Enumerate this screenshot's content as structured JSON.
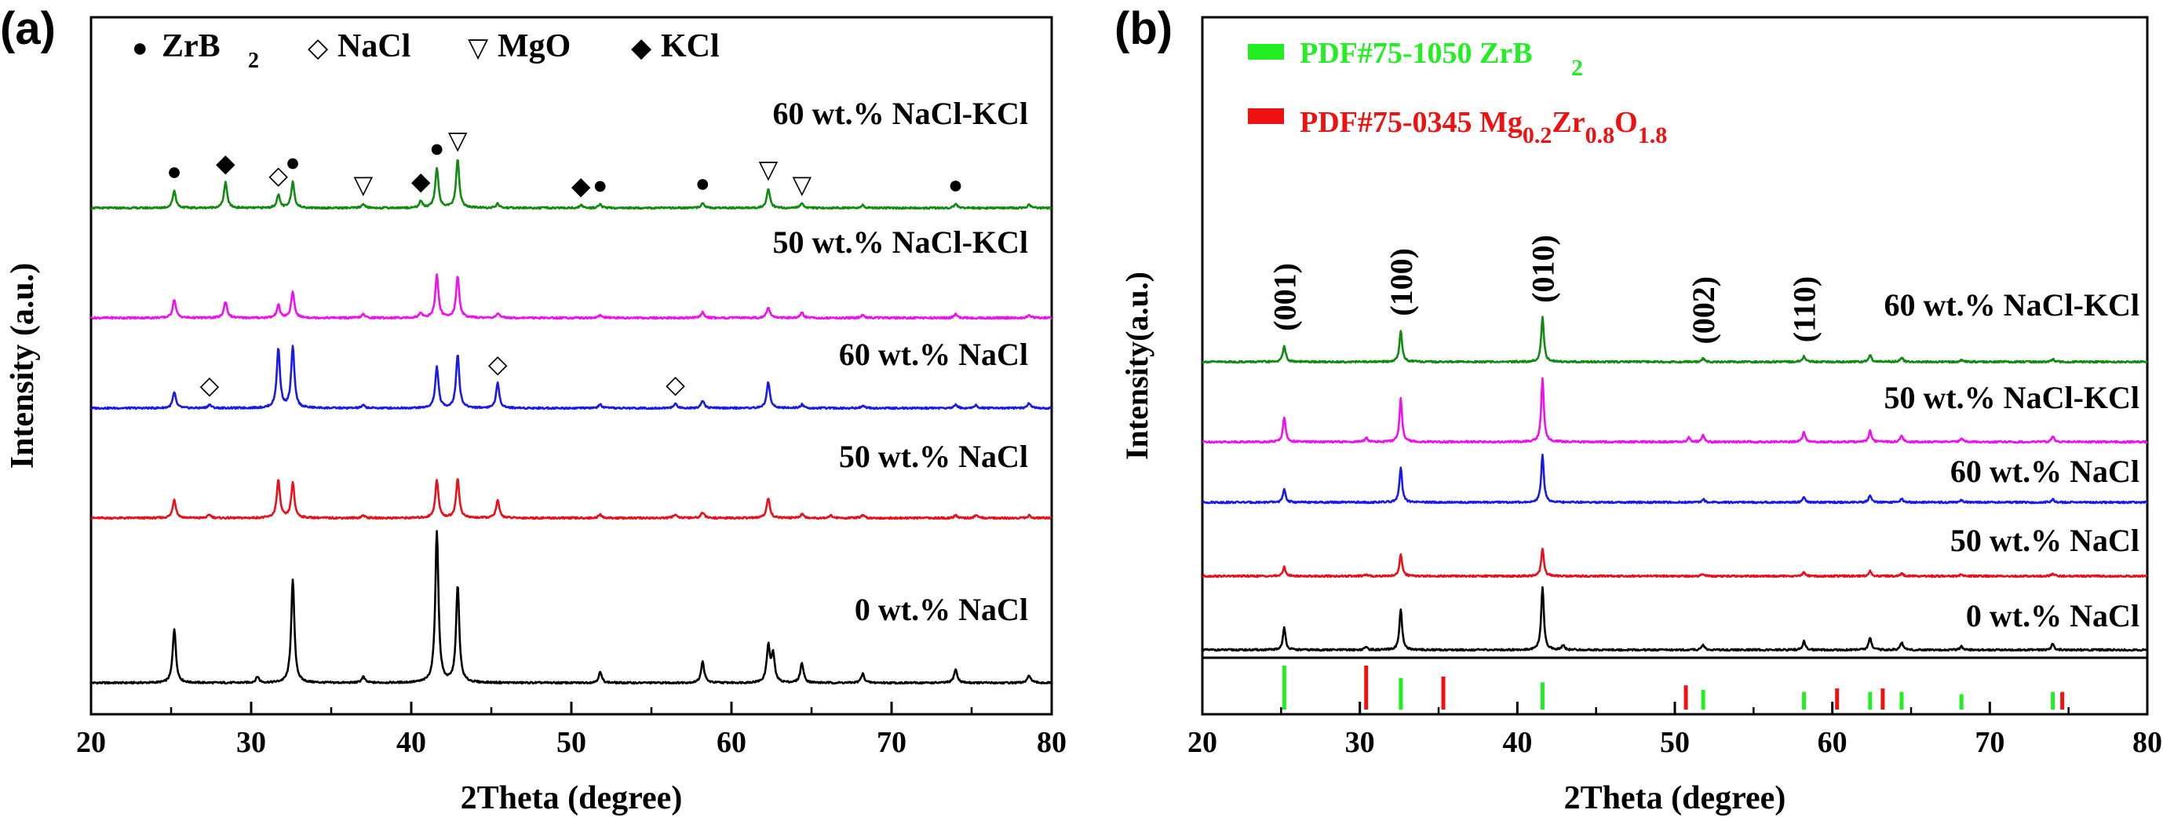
{
  "chart_data": [
    {
      "panel_label": "(a)",
      "type": "line",
      "xlabel": "2Theta (degree)",
      "ylabel": "Intensity (a.u.)",
      "xlim": [
        20,
        80
      ],
      "xticks": [
        "20",
        "30",
        "40",
        "50",
        "60",
        "70",
        "80"
      ],
      "legend": [
        {
          "symbol": "●",
          "label": "ZrB",
          "sub": "2"
        },
        {
          "symbol": "◇",
          "label": "NaCl",
          "sub": ""
        },
        {
          "symbol": "▽",
          "label": "MgO",
          "sub": ""
        },
        {
          "symbol": "◆",
          "label": "KCl",
          "sub": ""
        }
      ],
      "series": [
        {
          "name": "0 wt.% NaCl",
          "color": "#000000",
          "scale": 1.0,
          "peaks": [
            [
              25.2,
              0.36
            ],
            [
              30.4,
              0.04
            ],
            [
              32.6,
              0.68
            ],
            [
              37.0,
              0.04
            ],
            [
              41.6,
              1.0
            ],
            [
              42.9,
              0.64
            ],
            [
              51.8,
              0.07
            ],
            [
              58.2,
              0.14
            ],
            [
              62.3,
              0.24
            ],
            [
              62.6,
              0.18
            ],
            [
              64.4,
              0.13
            ],
            [
              68.2,
              0.06
            ],
            [
              74.0,
              0.09
            ],
            [
              78.6,
              0.05
            ]
          ]
        },
        {
          "name": "50 wt.% NaCl",
          "color": "#e8101a",
          "scale": 1.0,
          "peaks": [
            [
              25.2,
              0.28
            ],
            [
              27.4,
              0.05
            ],
            [
              31.7,
              0.56
            ],
            [
              32.6,
              0.52
            ],
            [
              37.0,
              0.04
            ],
            [
              41.6,
              0.56
            ],
            [
              42.9,
              0.58
            ],
            [
              45.4,
              0.26
            ],
            [
              51.8,
              0.05
            ],
            [
              56.5,
              0.06
            ],
            [
              58.2,
              0.08
            ],
            [
              62.3,
              0.3
            ],
            [
              64.4,
              0.06
            ],
            [
              66.2,
              0.04
            ],
            [
              68.2,
              0.04
            ],
            [
              74.0,
              0.04
            ],
            [
              75.3,
              0.04
            ],
            [
              78.6,
              0.04
            ]
          ]
        },
        {
          "name": "60 wt.% NaCl",
          "color": "#1a1ae8",
          "scale": 1.0,
          "peaks": [
            [
              25.2,
              0.22
            ],
            [
              27.4,
              0.05
            ],
            [
              31.7,
              0.84
            ],
            [
              32.6,
              0.86
            ],
            [
              37.0,
              0.04
            ],
            [
              41.6,
              0.58
            ],
            [
              42.9,
              0.76
            ],
            [
              45.4,
              0.35
            ],
            [
              51.8,
              0.05
            ],
            [
              56.5,
              0.06
            ],
            [
              58.2,
              0.11
            ],
            [
              62.3,
              0.37
            ],
            [
              64.4,
              0.05
            ],
            [
              68.2,
              0.04
            ],
            [
              74.0,
              0.05
            ],
            [
              75.3,
              0.04
            ],
            [
              78.6,
              0.07
            ]
          ]
        },
        {
          "name": "50 wt.% NaCl-KCl",
          "color": "#ee10ee",
          "scale": 1.0,
          "peaks": [
            [
              25.2,
              0.26
            ],
            [
              28.4,
              0.23
            ],
            [
              31.7,
              0.18
            ],
            [
              32.6,
              0.36
            ],
            [
              37.0,
              0.05
            ],
            [
              40.6,
              0.07
            ],
            [
              41.6,
              0.6
            ],
            [
              42.9,
              0.58
            ],
            [
              45.4,
              0.06
            ],
            [
              51.8,
              0.04
            ],
            [
              58.2,
              0.08
            ],
            [
              62.3,
              0.15
            ],
            [
              64.4,
              0.07
            ],
            [
              68.2,
              0.04
            ],
            [
              74.0,
              0.05
            ],
            [
              78.6,
              0.04
            ]
          ]
        },
        {
          "name": "60 wt.% NaCl-KCl",
          "color": "#108a10",
          "scale": 1.0,
          "peaks": [
            [
              25.2,
              0.26
            ],
            [
              28.4,
              0.38
            ],
            [
              31.7,
              0.19
            ],
            [
              32.6,
              0.39
            ],
            [
              37.0,
              0.06
            ],
            [
              40.6,
              0.1
            ],
            [
              41.6,
              0.6
            ],
            [
              42.9,
              0.72
            ],
            [
              45.4,
              0.06
            ],
            [
              50.6,
              0.04
            ],
            [
              51.8,
              0.05
            ],
            [
              58.2,
              0.08
            ],
            [
              62.3,
              0.29
            ],
            [
              64.4,
              0.06
            ],
            [
              68.2,
              0.04
            ],
            [
              74.0,
              0.06
            ],
            [
              78.6,
              0.05
            ]
          ]
        }
      ],
      "annotations": [
        {
          "symbol": "●",
          "x": 25.2,
          "series": 4
        },
        {
          "symbol": "◆",
          "x": 28.4,
          "series": 4
        },
        {
          "symbol": "◇",
          "x": 31.7,
          "series": 4
        },
        {
          "symbol": "●",
          "x": 32.6,
          "series": 4
        },
        {
          "symbol": "▽",
          "x": 37.0,
          "series": 4
        },
        {
          "symbol": "◆",
          "x": 40.6,
          "series": 4
        },
        {
          "symbol": "●",
          "x": 41.6,
          "series": 4
        },
        {
          "symbol": "▽",
          "x": 42.9,
          "series": 4
        },
        {
          "symbol": "◆",
          "x": 50.6,
          "series": 4
        },
        {
          "symbol": "●",
          "x": 51.8,
          "series": 4
        },
        {
          "symbol": "●",
          "x": 58.2,
          "series": 4
        },
        {
          "symbol": "▽",
          "x": 62.3,
          "series": 4
        },
        {
          "symbol": "▽",
          "x": 64.4,
          "series": 4
        },
        {
          "symbol": "●",
          "x": 74.0,
          "series": 4
        },
        {
          "symbol": "◇",
          "x": 27.4,
          "series": 2
        },
        {
          "symbol": "◇",
          "x": 45.4,
          "series": 2
        },
        {
          "symbol": "◇",
          "x": 56.5,
          "series": 2
        }
      ]
    },
    {
      "panel_label": "(b)",
      "type": "line",
      "xlabel": "2Theta (degree)",
      "ylabel": "Intensity(a.u.)",
      "xlim": [
        20,
        80
      ],
      "xticks": [
        "20",
        "30",
        "40",
        "50",
        "60",
        "70",
        "80"
      ],
      "legend": [
        {
          "label": "PDF#75-1050 ZrB",
          "sub": "2",
          "color": "#22ee22"
        },
        {
          "label": "PDF#75-0345 Mg",
          "color": "#ee1111",
          "parts": [
            [
              "Mg",
              ""
            ],
            [
              "0.2",
              "sub"
            ],
            [
              "Zr",
              ""
            ],
            [
              "0.8",
              "sub"
            ],
            [
              "O",
              ""
            ],
            [
              "1.8",
              "sub"
            ]
          ]
        }
      ],
      "series": [
        {
          "name": "0 wt.% NaCl",
          "color": "#000000",
          "peaks": [
            [
              25.2,
              0.35
            ],
            [
              30.4,
              0.05
            ],
            [
              32.6,
              0.65
            ],
            [
              41.6,
              1.0
            ],
            [
              42.9,
              0.08
            ],
            [
              51.8,
              0.08
            ],
            [
              58.2,
              0.14
            ],
            [
              62.4,
              0.2
            ],
            [
              64.4,
              0.12
            ],
            [
              68.2,
              0.06
            ],
            [
              74.0,
              0.1
            ]
          ]
        },
        {
          "name": "50 wt.% NaCl",
          "color": "#e8101a",
          "peaks": [
            [
              25.2,
              0.25
            ],
            [
              30.4,
              0.04
            ],
            [
              32.6,
              0.6
            ],
            [
              41.6,
              0.75
            ],
            [
              51.8,
              0.06
            ],
            [
              58.2,
              0.1
            ],
            [
              62.4,
              0.14
            ],
            [
              64.4,
              0.08
            ],
            [
              68.2,
              0.05
            ],
            [
              74.0,
              0.07
            ]
          ]
        },
        {
          "name": "60 wt.% NaCl",
          "color": "#1a1ae8",
          "peaks": [
            [
              25.2,
              0.3
            ],
            [
              32.6,
              0.82
            ],
            [
              41.6,
              1.12
            ],
            [
              51.8,
              0.07
            ],
            [
              58.2,
              0.12
            ],
            [
              62.4,
              0.18
            ],
            [
              64.4,
              0.09
            ],
            [
              68.2,
              0.05
            ],
            [
              74.0,
              0.07
            ]
          ]
        },
        {
          "name": "50 wt.% NaCl-KCl",
          "color": "#ee10ee",
          "peaks": [
            [
              25.2,
              0.55
            ],
            [
              30.4,
              0.1
            ],
            [
              32.6,
              0.95
            ],
            [
              41.6,
              1.38
            ],
            [
              50.9,
              0.1
            ],
            [
              51.8,
              0.14
            ],
            [
              58.2,
              0.22
            ],
            [
              62.4,
              0.24
            ],
            [
              64.4,
              0.14
            ],
            [
              68.2,
              0.08
            ],
            [
              74.0,
              0.12
            ]
          ]
        },
        {
          "name": "60 wt.% NaCl-KCl",
          "color": "#108a10",
          "peaks": [
            [
              25.2,
              0.38
            ],
            [
              32.6,
              0.72
            ],
            [
              41.6,
              1.02
            ],
            [
              51.8,
              0.08
            ],
            [
              58.2,
              0.12
            ],
            [
              62.4,
              0.16
            ],
            [
              64.4,
              0.1
            ],
            [
              68.2,
              0.05
            ],
            [
              74.0,
              0.07
            ]
          ]
        }
      ],
      "peak_labels": [
        {
          "text": "(001)",
          "x": 25.2
        },
        {
          "text": "(100)",
          "x": 32.6
        },
        {
          "text": "(010)",
          "x": 41.6
        },
        {
          "text": "(002)",
          "x": 51.8
        },
        {
          "text": "(110)",
          "x": 58.2
        }
      ],
      "reference_lines": [
        {
          "name": "PDF#75-1050 ZrB2",
          "color": "#22ee22",
          "x": [
            25.2,
            32.6,
            41.6,
            51.8,
            58.2,
            62.4,
            64.4,
            68.2,
            74.0
          ],
          "h": [
            1.0,
            0.72,
            0.62,
            0.45,
            0.4,
            0.4,
            0.4,
            0.35,
            0.4
          ]
        },
        {
          "name": "PDF#75-0345 Mg0.2Zr0.8O1.8",
          "color": "#ee1111",
          "x": [
            30.4,
            35.3,
            50.7,
            60.3,
            63.2,
            74.6
          ],
          "h": [
            1.0,
            0.75,
            0.55,
            0.48,
            0.48,
            0.4
          ]
        }
      ]
    }
  ]
}
